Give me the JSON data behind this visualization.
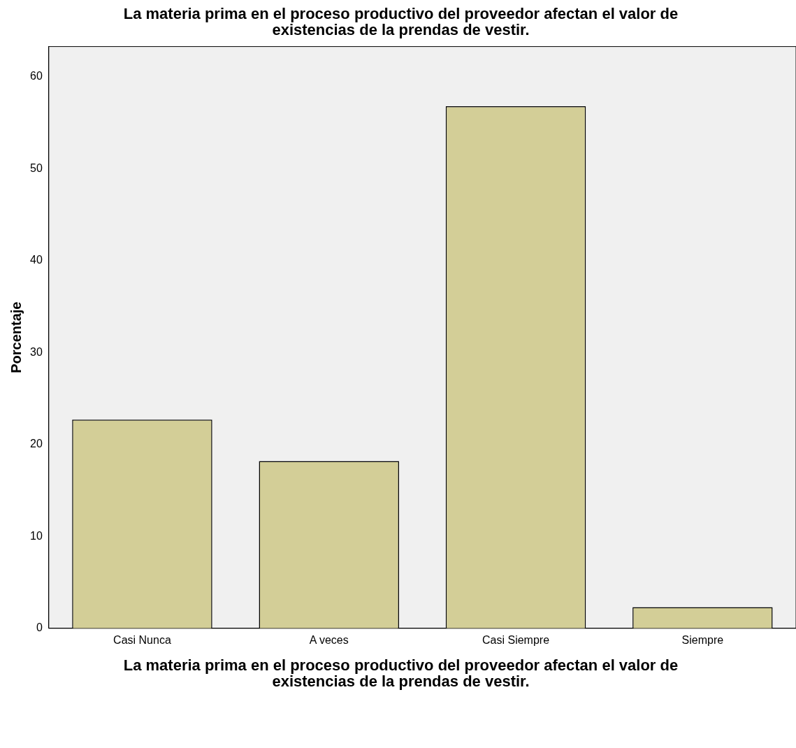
{
  "chart_data": {
    "type": "bar",
    "title": "La materia prima en el proceso productivo del proveedor afectan el valor de existencias de la prendas de vestir.",
    "xlabel": "La materia prima en el proceso productivo del proveedor afectan el valor de existencias de la prendas de vestir.",
    "ylabel": "Porcentaje",
    "categories": [
      "Casi Nunca",
      "A veces",
      "Casi Siempre",
      "Siempre"
    ],
    "values": [
      22.7,
      18.2,
      56.8,
      2.3
    ],
    "color": "#d3ce97",
    "ylim": [
      0,
      63.3
    ],
    "yticks": [
      0,
      10,
      20,
      30,
      40,
      50,
      60
    ],
    "grid": false,
    "legend": false
  }
}
